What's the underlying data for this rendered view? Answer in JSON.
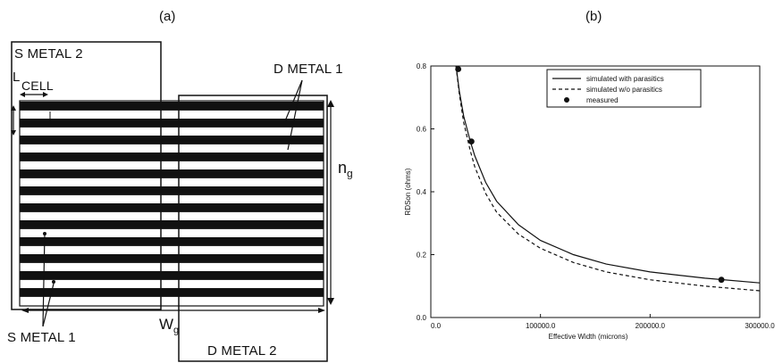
{
  "left_panel": {
    "panel_label": "(a)",
    "labels": {
      "s_metal_2": "S METAL 2",
      "l_cell_L": "L",
      "l_cell_sub": "CELL",
      "d_metal_1": "D METAL 1",
      "n_g": "n",
      "n_g_sub": "g",
      "w_g": "W",
      "w_g_sub": "g",
      "s_metal_1": "S METAL 1",
      "d_metal_2": "D METAL 2"
    },
    "stripe_count": 12
  },
  "right_panel": {
    "panel_label": "(b)"
  },
  "chart_data": {
    "type": "line",
    "title": "",
    "xlabel": "Effective Width (microns)",
    "ylabel": "RDSon (ohms)",
    "xlim": [
      0,
      300000
    ],
    "ylim": [
      0,
      0.8
    ],
    "x_ticks": [
      0,
      100000,
      200000,
      300000
    ],
    "x_tick_labels": [
      "0.0",
      "100000.0",
      "200000.0",
      "300000.0"
    ],
    "y_ticks": [
      0,
      0.2,
      0.4,
      0.6,
      0.8
    ],
    "y_tick_labels": [
      "0.0",
      "0.2",
      "0.4",
      "0.6",
      "0.8"
    ],
    "legend_position": "top-right",
    "series": [
      {
        "name": "simulated with parasitics",
        "style": "solid",
        "x": [
          23000,
          26000,
          30000,
          36000,
          40000,
          50000,
          60000,
          80000,
          100000,
          130000,
          160000,
          200000,
          250000,
          300000
        ],
        "y": [
          0.8,
          0.72,
          0.64,
          0.56,
          0.515,
          0.43,
          0.37,
          0.295,
          0.245,
          0.2,
          0.17,
          0.145,
          0.125,
          0.11
        ]
      },
      {
        "name": "simulated w/o parasitics",
        "style": "dashed",
        "x": [
          23000,
          26000,
          30000,
          36000,
          40000,
          50000,
          60000,
          80000,
          100000,
          130000,
          160000,
          200000,
          250000,
          300000
        ],
        "y": [
          0.8,
          0.71,
          0.62,
          0.53,
          0.48,
          0.395,
          0.335,
          0.265,
          0.22,
          0.175,
          0.145,
          0.12,
          0.1,
          0.085
        ]
      },
      {
        "name": "measured",
        "style": "markers",
        "x": [
          25000,
          37000,
          265000
        ],
        "y": [
          0.79,
          0.56,
          0.12
        ]
      }
    ]
  }
}
